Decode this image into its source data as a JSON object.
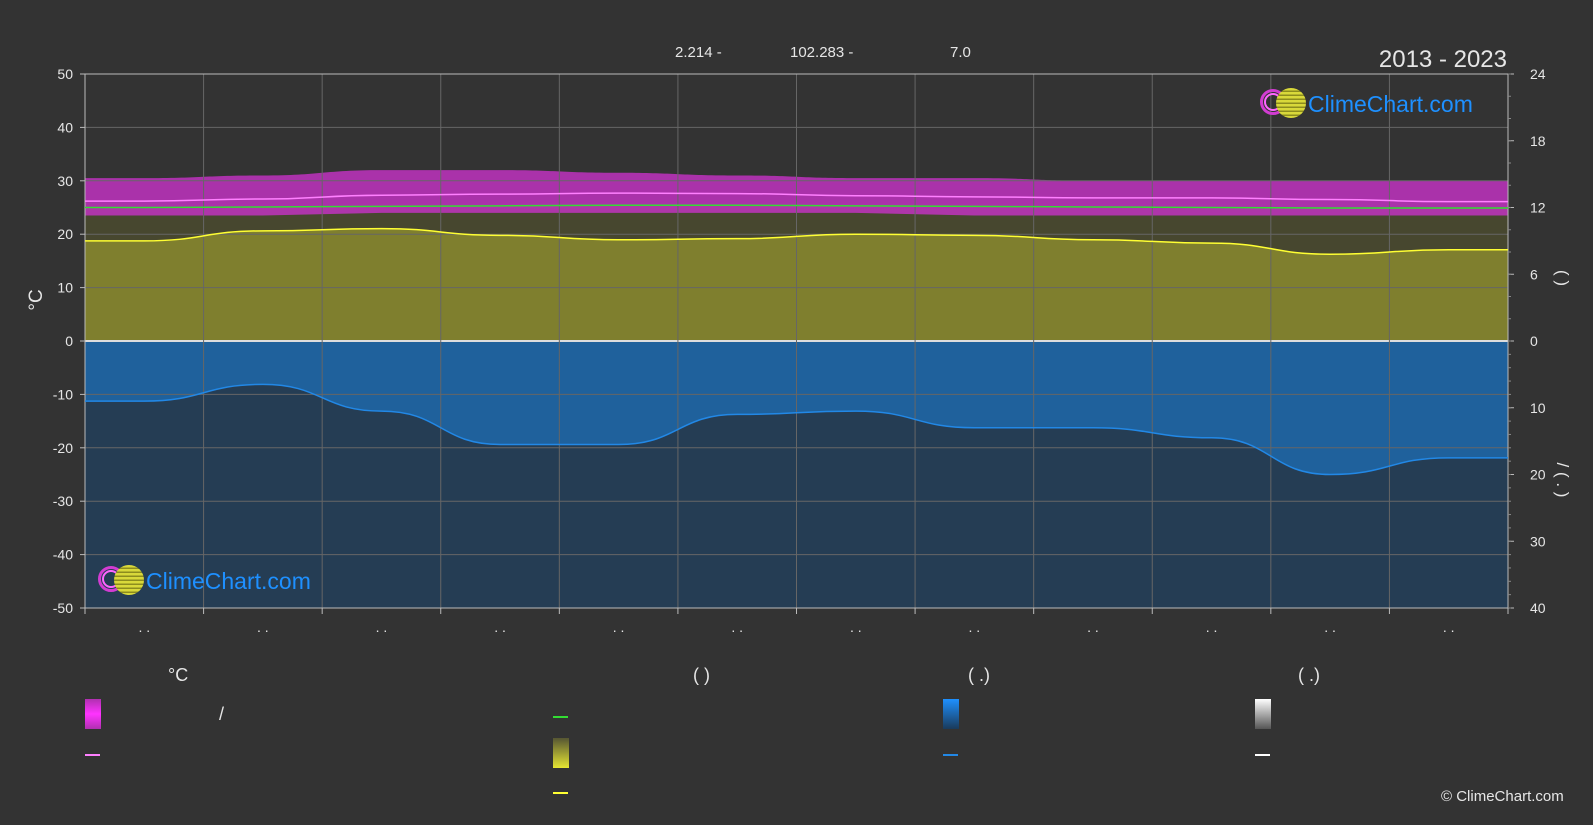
{
  "header": {
    "period": "2013 - 2023",
    "lat": "2.214 -",
    "lon": "102.283 -",
    "elev": "7.0"
  },
  "brand": {
    "name": "ClimeChart.com",
    "copyright": "© ClimeChart.com"
  },
  "legend": {
    "col1_title": "°C",
    "col1_sep": "/",
    "col2_title": "(          )",
    "col3_title": "(   .)",
    "col4_title": "(   .)"
  },
  "colors": {
    "temp_band": "#c832c8",
    "temp_mean": "#ff80ff",
    "sunshine_band": "#999932",
    "sunshine_line": "#ffff33",
    "daylight": "#33dd33",
    "precip_band": "#1e6eb4",
    "precip_line": "#2288e6",
    "snow": "#ffffff"
  },
  "chart_data": {
    "type": "area",
    "months": 12,
    "x_tick_labels": [
      ". .",
      ". .",
      ". .",
      ". .",
      ". .",
      ". .",
      ". .",
      ". .",
      ". .",
      ". .",
      ". .",
      ". ."
    ],
    "left_axis": {
      "label": "°C",
      "ylim": [
        -50,
        50
      ],
      "ticks": [
        50,
        40,
        30,
        20,
        10,
        0,
        -10,
        -20,
        -30,
        -40,
        -50
      ]
    },
    "right_axis_upper": {
      "label": "(   )",
      "ylim": [
        0,
        24
      ],
      "ticks": [
        24,
        18,
        12,
        6,
        0
      ]
    },
    "right_axis_lower": {
      "label": "/  (  .  )",
      "ylim": [
        0,
        40
      ],
      "ticks": [
        10,
        20,
        30,
        40
      ]
    },
    "grid": true,
    "series": [
      {
        "name": "temp_max",
        "values": [
          30.5,
          31.0,
          32.0,
          32.0,
          31.5,
          31.0,
          30.5,
          30.5,
          30.0,
          30.0,
          30.0,
          30.0
        ]
      },
      {
        "name": "temp_min",
        "values": [
          23.5,
          23.5,
          24.0,
          24.0,
          24.0,
          24.0,
          24.0,
          23.5,
          23.5,
          23.5,
          23.5,
          23.5
        ]
      },
      {
        "name": "temp_mean",
        "values": [
          26.2,
          26.6,
          27.3,
          27.5,
          27.7,
          27.6,
          27.2,
          27.0,
          26.8,
          26.8,
          26.5,
          26.1
        ]
      },
      {
        "name": "daylight_hours",
        "values": [
          12.0,
          12.05,
          12.1,
          12.15,
          12.2,
          12.2,
          12.15,
          12.1,
          12.05,
          12.0,
          11.95,
          11.95
        ]
      },
      {
        "name": "sunshine_hours",
        "values": [
          9.0,
          9.9,
          10.1,
          9.5,
          9.1,
          9.2,
          9.6,
          9.5,
          9.1,
          8.8,
          7.8,
          8.2
        ]
      },
      {
        "name": "precipitation_mm",
        "values": [
          9.0,
          6.5,
          10.5,
          15.5,
          15.5,
          11.0,
          10.5,
          13.0,
          13.0,
          14.5,
          20.0,
          17.5
        ]
      }
    ]
  }
}
